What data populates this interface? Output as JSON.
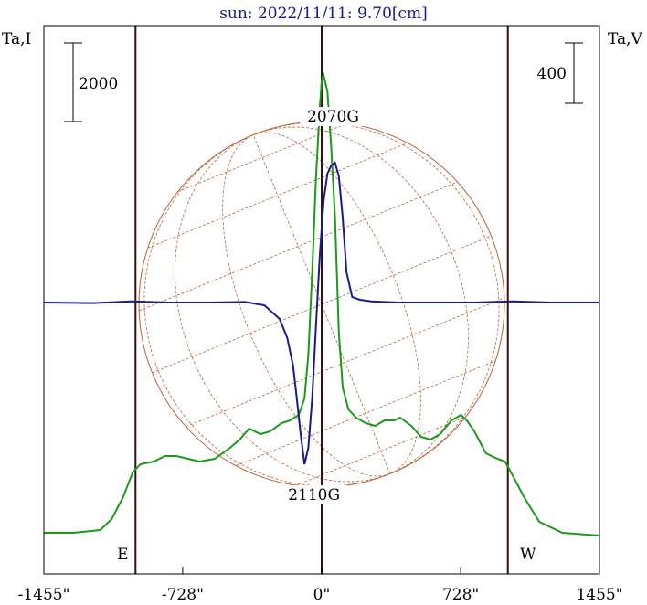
{
  "chart_data": {
    "type": "line",
    "title": "sun: 2022/11/11: 9.70[cm]",
    "left_axis_label": "Ta,I",
    "right_axis_label": "Ta,V",
    "left_scale_bar": "2000",
    "right_scale_bar": "400",
    "x_ticks": [
      {
        "value": -1455,
        "label": "-1455\""
      },
      {
        "value": -728,
        "label": "-728\""
      },
      {
        "value": 0,
        "label": "0\""
      },
      {
        "value": 728,
        "label": "728\""
      },
      {
        "value": 1455,
        "label": "1455\""
      }
    ],
    "xlim": [
      -1455,
      1455
    ],
    "limb_markers": [
      {
        "x": -975,
        "label": "E"
      },
      {
        "x": 0,
        "label": ""
      },
      {
        "x": 975,
        "label": "W"
      }
    ],
    "annotations": [
      {
        "label": "2070G",
        "x": 60,
        "y_frac": 0.175
      },
      {
        "label": "2110G",
        "x": -40,
        "y_frac": 0.865
      }
    ],
    "y_frac_note": "0 = top of plot, 1 = bottom",
    "colors": {
      "stokes_I": "#1a9a1a",
      "stokes_V": "#1a1a8c",
      "frame": "#000000",
      "limb_lines": "#3a0f0f",
      "solar_disk": "#b5623a",
      "title": "#1a1a8c"
    },
    "series": [
      {
        "name": "I",
        "x": [
          -1455,
          -1300,
          -1160,
          -1100,
          -1040,
          -990,
          -950,
          -880,
          -820,
          -760,
          -700,
          -640,
          -560,
          -480,
          -430,
          -380,
          -320,
          -270,
          -210,
          -165,
          -120,
          -90,
          -70,
          -50,
          -30,
          -10,
          0,
          10,
          30,
          50,
          70,
          90,
          110,
          140,
          180,
          230,
          280,
          330,
          380,
          410,
          470,
          520,
          570,
          620,
          680,
          730,
          760,
          800,
          860,
          920,
          960,
          1000,
          1060,
          1140,
          1260,
          1455
        ],
        "y_frac": [
          0.925,
          0.925,
          0.92,
          0.9,
          0.86,
          0.815,
          0.8,
          0.795,
          0.785,
          0.785,
          0.79,
          0.795,
          0.79,
          0.77,
          0.755,
          0.735,
          0.745,
          0.74,
          0.725,
          0.72,
          0.71,
          0.68,
          0.6,
          0.45,
          0.28,
          0.15,
          0.1,
          0.09,
          0.12,
          0.22,
          0.35,
          0.56,
          0.66,
          0.7,
          0.715,
          0.725,
          0.73,
          0.72,
          0.72,
          0.715,
          0.73,
          0.75,
          0.755,
          0.745,
          0.72,
          0.71,
          0.72,
          0.74,
          0.78,
          0.79,
          0.795,
          0.82,
          0.86,
          0.905,
          0.925,
          0.93
        ]
      },
      {
        "name": "V",
        "x": [
          -1455,
          -1200,
          -1000,
          -800,
          -600,
          -400,
          -300,
          -220,
          -180,
          -150,
          -130,
          -110,
          -90,
          -70,
          -50,
          -30,
          -10,
          10,
          30,
          50,
          70,
          90,
          110,
          130,
          160,
          200,
          260,
          400,
          600,
          800,
          1000,
          1200,
          1455
        ],
        "y_frac": [
          0.505,
          0.506,
          0.503,
          0.505,
          0.505,
          0.504,
          0.51,
          0.535,
          0.57,
          0.62,
          0.68,
          0.745,
          0.8,
          0.77,
          0.68,
          0.55,
          0.42,
          0.32,
          0.27,
          0.255,
          0.25,
          0.275,
          0.35,
          0.45,
          0.495,
          0.5,
          0.503,
          0.505,
          0.505,
          0.505,
          0.503,
          0.505,
          0.505
        ]
      }
    ]
  }
}
